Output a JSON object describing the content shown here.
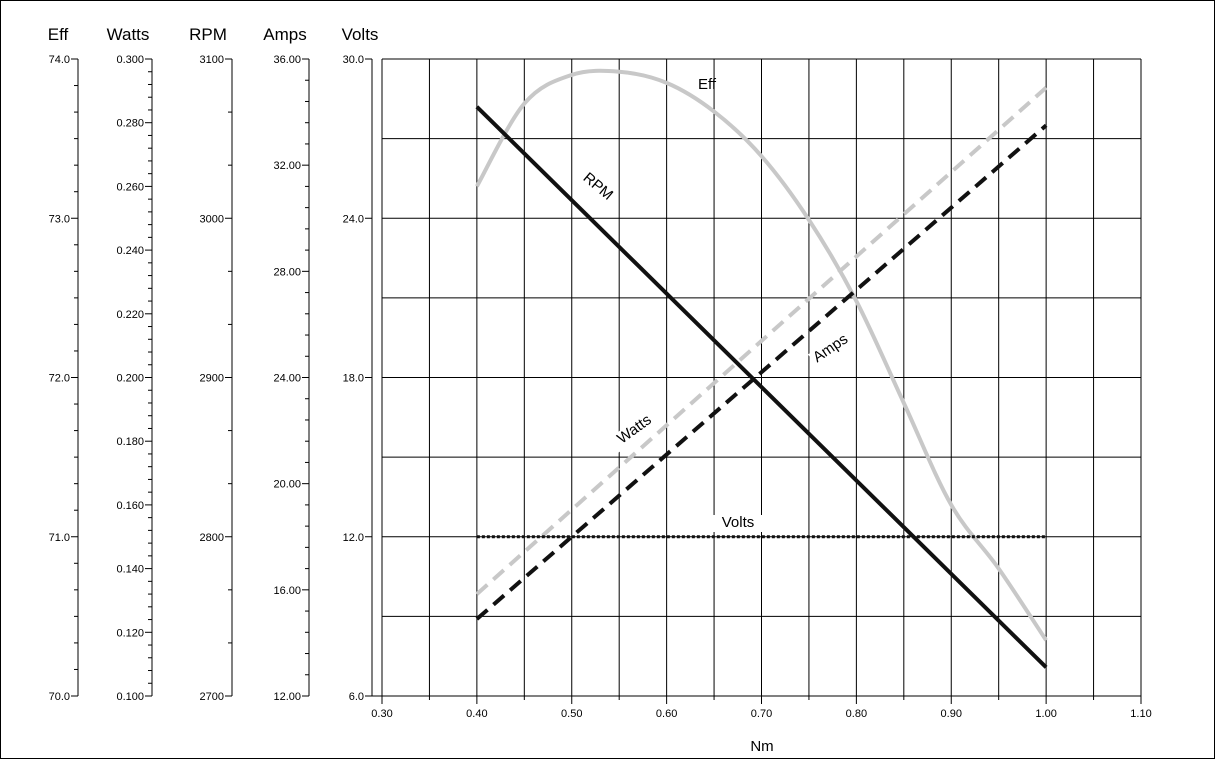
{
  "chart_data": {
    "type": "line",
    "xlabel": "Nm",
    "xlim": [
      0.3,
      1.1
    ],
    "xticks": [
      "0.30",
      "0.40",
      "0.50",
      "0.60",
      "0.70",
      "0.80",
      "0.90",
      "1.00",
      "1.10"
    ],
    "grid": true,
    "axes": [
      {
        "name": "Eff",
        "min": 70.0,
        "max": 74.0,
        "ticks": [
          "74.0",
          "73.0",
          "72.0",
          "71.0",
          "70.0"
        ]
      },
      {
        "name": "Watts",
        "min": 0.1,
        "max": 0.3,
        "ticks": [
          "0.300",
          "0.280",
          "0.260",
          "0.240",
          "0.220",
          "0.200",
          "0.180",
          "0.160",
          "0.140",
          "0.120",
          "0.100"
        ]
      },
      {
        "name": "RPM",
        "min": 2700,
        "max": 3100,
        "ticks": [
          "3100",
          "3000",
          "2900",
          "2800",
          "2700"
        ]
      },
      {
        "name": "Amps",
        "min": 12.0,
        "max": 36.0,
        "ticks": [
          "36.00",
          "32.00",
          "28.00",
          "24.00",
          "20.00",
          "16.00",
          "12.00"
        ]
      },
      {
        "name": "Volts",
        "min": 6.0,
        "max": 30.0,
        "ticks": [
          "30.0",
          "24.0",
          "18.0",
          "12.0",
          "6.0"
        ]
      }
    ],
    "series": [
      {
        "name": "Eff",
        "axis": "Eff",
        "color": "#c8c8c8",
        "style": "solid",
        "x": [
          0.4,
          0.45,
          0.5,
          0.55,
          0.6,
          0.65,
          0.7,
          0.75,
          0.8,
          0.85,
          0.9,
          0.95,
          1.0
        ],
        "y": [
          73.2,
          73.72,
          73.9,
          73.92,
          73.85,
          73.67,
          73.39,
          72.99,
          72.48,
          71.84,
          71.2,
          70.8,
          70.35
        ]
      },
      {
        "name": "RPM",
        "axis": "RPM",
        "color": "#111111",
        "style": "solid",
        "x": [
          0.4,
          1.0
        ],
        "y": [
          3070,
          2718
        ]
      },
      {
        "name": "Watts",
        "axis": "Watts",
        "color": "#c8c8c8",
        "style": "dashed",
        "x": [
          0.4,
          1.0
        ],
        "y": [
          0.132,
          0.291
        ]
      },
      {
        "name": "Amps",
        "axis": "Amps",
        "color": "#111111",
        "style": "dashed",
        "x": [
          0.4,
          1.0
        ],
        "y": [
          14.9,
          33.5
        ]
      },
      {
        "name": "Volts",
        "axis": "Volts",
        "color": "#111111",
        "style": "dotted",
        "x": [
          0.4,
          1.0
        ],
        "y": [
          12.0,
          12.0
        ]
      }
    ]
  }
}
